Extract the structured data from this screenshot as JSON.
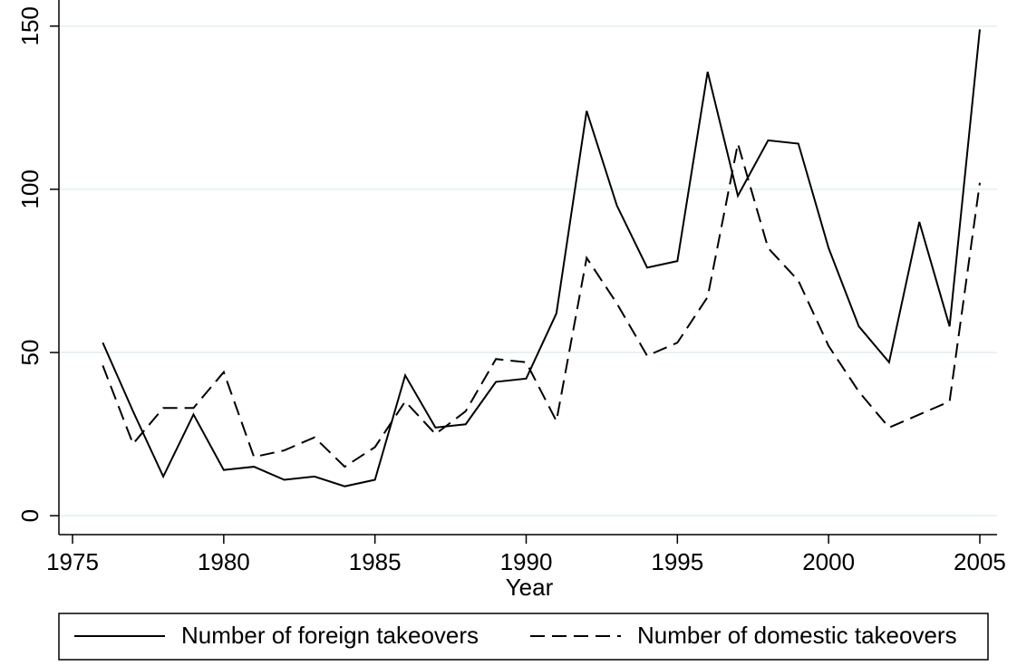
{
  "chart_data": {
    "type": "line",
    "xlabel": "Year",
    "x": [
      1976,
      1977,
      1978,
      1979,
      1980,
      1981,
      1982,
      1983,
      1984,
      1985,
      1986,
      1987,
      1988,
      1989,
      1990,
      1991,
      1992,
      1993,
      1994,
      1995,
      1996,
      1997,
      1998,
      1999,
      2000,
      2001,
      2002,
      2003,
      2004,
      2005
    ],
    "series": [
      {
        "name": "Number of foreign takeovers",
        "color": "#000000",
        "dash": "solid",
        "values": [
          53,
          32,
          12,
          31,
          14,
          15,
          11,
          12,
          9,
          11,
          43,
          27,
          28,
          41,
          42,
          62,
          124,
          95,
          76,
          78,
          136,
          98,
          115,
          114,
          82,
          58,
          47,
          90,
          58,
          149
        ]
      },
      {
        "name": "Number of domestic takeovers",
        "color": "#000000",
        "dash": "dashed",
        "values": [
          46,
          22,
          33,
          33,
          44,
          18,
          20,
          24,
          15,
          21,
          35,
          25,
          32,
          48,
          47,
          29,
          79,
          65,
          49,
          53,
          67,
          114,
          82,
          72,
          52,
          38,
          27,
          31,
          35,
          102
        ]
      }
    ],
    "xlim": [
      1974.55,
      2005.57
    ],
    "xticks": [
      1975,
      1980,
      1985,
      1990,
      1995,
      2000,
      2005
    ],
    "ylim": [
      -5.8,
      158
    ],
    "yticks": [
      0,
      50,
      100,
      150
    ],
    "grid": true,
    "legend": "bottom"
  }
}
